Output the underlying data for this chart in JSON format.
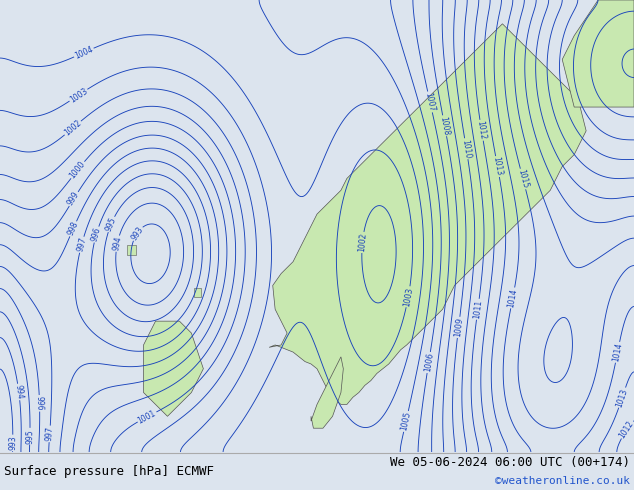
{
  "title_left": "Surface pressure [hPa] ECMWF",
  "title_right": "We 05-06-2024 06:00 UTC (00+174)",
  "copyright": "©weatheronline.co.uk",
  "sea_color": "#dce4ee",
  "land_color": "#c8e8b0",
  "contour_color_blue": "#1a44bb",
  "contour_color_red": "#cc2222",
  "label_color_blue": "#1a44bb",
  "figsize": [
    6.34,
    4.9
  ],
  "dpi": 100,
  "bottom_bar_height": 38,
  "bar_bg": "#ffffff",
  "bar_text_color": "#000000",
  "bar_copy_color": "#2255cc"
}
